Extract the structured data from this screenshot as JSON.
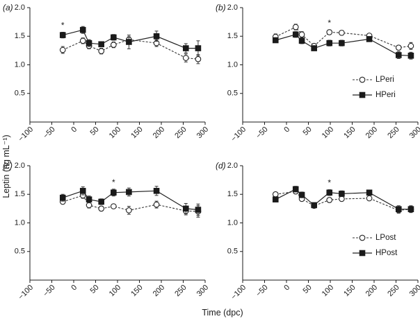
{
  "figure": {
    "ylabel": "Leptin (ng mL⁻¹)",
    "xlabel": "Time (dpc)"
  },
  "colors": {
    "ink": "#1a1a1a",
    "background": "#ffffff"
  },
  "chart_data": [
    {
      "type": "line",
      "panel": "(a)",
      "xlim": [
        -100,
        300
      ],
      "ylim": [
        0,
        2.0
      ],
      "xticks": [
        "−100",
        "−50",
        "0",
        "50",
        "100",
        "150",
        "200",
        "250",
        "300"
      ],
      "yticks": [
        "0.5",
        "1.0",
        "1.5",
        "2.0"
      ],
      "xtick_values": [
        -100,
        -50,
        0,
        50,
        100,
        150,
        200,
        250,
        300
      ],
      "ytick_values": [
        0.5,
        1.0,
        1.5,
        2.0
      ],
      "series": [
        {
          "name": "LPeri",
          "marker": "open-circle",
          "line": "dashed",
          "x": [
            -25,
            21,
            35,
            63,
            91,
            126,
            189,
            256,
            284
          ],
          "y": [
            1.26,
            1.42,
            1.33,
            1.24,
            1.35,
            1.44,
            1.38,
            1.12,
            1.1
          ],
          "err": [
            0.06,
            0.05,
            0.05,
            0.05,
            0.05,
            0.05,
            0.06,
            0.07,
            0.08
          ]
        },
        {
          "name": "HPeri",
          "marker": "filled-square",
          "line": "solid",
          "x": [
            -25,
            21,
            35,
            63,
            91,
            126,
            189,
            256,
            284
          ],
          "y": [
            1.52,
            1.61,
            1.38,
            1.36,
            1.48,
            1.4,
            1.5,
            1.29,
            1.29
          ],
          "err": [
            0.05,
            0.06,
            0.06,
            0.04,
            0.05,
            0.12,
            0.09,
            0.08,
            0.13
          ]
        }
      ],
      "significance": [
        {
          "x": -25,
          "label": "*"
        }
      ]
    },
    {
      "type": "line",
      "panel": "(b)",
      "xlim": [
        -100,
        300
      ],
      "ylim": [
        0,
        2.0
      ],
      "xticks": [
        "−100",
        "−50",
        "0",
        "50",
        "100",
        "150",
        "200",
        "250",
        "300"
      ],
      "yticks": [
        "0.5",
        "1.0",
        "1.5",
        "2.0"
      ],
      "xtick_values": [
        -100,
        -50,
        0,
        50,
        100,
        150,
        200,
        250,
        300
      ],
      "ytick_values": [
        0.5,
        1.0,
        1.5,
        2.0
      ],
      "series": [
        {
          "name": "LPeri",
          "marker": "open-circle",
          "line": "dashed",
          "x": [
            -25,
            21,
            35,
            63,
            98,
            126,
            189,
            256,
            284
          ],
          "y": [
            1.49,
            1.66,
            1.53,
            1.33,
            1.57,
            1.56,
            1.51,
            1.3,
            1.33
          ],
          "err": [
            0.05,
            0.05,
            0.05,
            0.04,
            0.04,
            0.04,
            0.03,
            0.04,
            0.06
          ]
        },
        {
          "name": "HPeri",
          "marker": "filled-square",
          "line": "solid",
          "x": [
            -25,
            21,
            35,
            63,
            98,
            126,
            189,
            256,
            284
          ],
          "y": [
            1.43,
            1.53,
            1.42,
            1.29,
            1.38,
            1.38,
            1.45,
            1.17,
            1.16
          ],
          "err": [
            0.04,
            0.05,
            0.05,
            0.04,
            0.05,
            0.05,
            0.04,
            0.06,
            0.06
          ]
        }
      ],
      "significance": [
        {
          "x": 98,
          "label": "*"
        }
      ],
      "legend": {
        "position": "right",
        "entries": [
          "LPeri",
          "HPeri"
        ]
      }
    },
    {
      "type": "line",
      "panel": "(c)",
      "xlim": [
        -100,
        300
      ],
      "ylim": [
        0,
        2.0
      ],
      "xticks": [
        "−100",
        "−50",
        "0",
        "50",
        "100",
        "150",
        "200",
        "250",
        "300"
      ],
      "yticks": [
        "0.5",
        "1.0",
        "1.5",
        "2.0"
      ],
      "xtick_values": [
        -100,
        -50,
        0,
        50,
        100,
        150,
        200,
        250,
        300
      ],
      "ytick_values": [
        0.5,
        1.0,
        1.5,
        2.0
      ],
      "series": [
        {
          "name": "LPost",
          "marker": "open-circle",
          "line": "dashed",
          "x": [
            -25,
            21,
            35,
            63,
            91,
            126,
            189,
            256,
            284
          ],
          "y": [
            1.37,
            1.48,
            1.31,
            1.25,
            1.29,
            1.22,
            1.32,
            1.21,
            1.2
          ],
          "err": [
            0.04,
            0.05,
            0.05,
            0.04,
            0.03,
            0.07,
            0.06,
            0.07,
            0.1
          ]
        },
        {
          "name": "HPost",
          "marker": "filled-square",
          "line": "solid",
          "x": [
            -25,
            21,
            35,
            63,
            91,
            126,
            189,
            256,
            284
          ],
          "y": [
            1.44,
            1.56,
            1.41,
            1.37,
            1.53,
            1.54,
            1.56,
            1.25,
            1.23
          ],
          "err": [
            0.06,
            0.07,
            0.06,
            0.05,
            0.06,
            0.07,
            0.08,
            0.09,
            0.1
          ]
        }
      ],
      "significance": [
        {
          "x": 91,
          "label": "*"
        }
      ]
    },
    {
      "type": "line",
      "panel": "(d)",
      "xlim": [
        -100,
        300
      ],
      "ylim": [
        0,
        2.0
      ],
      "xticks": [
        "−100",
        "−50",
        "0",
        "50",
        "100",
        "150",
        "200",
        "250",
        "300"
      ],
      "yticks": [
        "0.5",
        "1.0",
        "1.5",
        "2.0"
      ],
      "xtick_values": [
        -100,
        -50,
        0,
        50,
        100,
        150,
        200,
        250,
        300
      ],
      "ytick_values": [
        0.5,
        1.0,
        1.5,
        2.0
      ],
      "series": [
        {
          "name": "LPost",
          "marker": "open-circle",
          "line": "dashed",
          "x": [
            -25,
            21,
            35,
            63,
            98,
            126,
            189,
            256,
            284
          ],
          "y": [
            1.5,
            1.55,
            1.42,
            1.3,
            1.4,
            1.42,
            1.43,
            1.22,
            1.24
          ],
          "err": [
            0.03,
            0.04,
            0.04,
            0.03,
            0.04,
            0.04,
            0.03,
            0.05,
            0.05
          ]
        },
        {
          "name": "HPost",
          "marker": "filled-square",
          "line": "solid",
          "x": [
            -25,
            21,
            35,
            63,
            98,
            126,
            189,
            256,
            284
          ],
          "y": [
            1.41,
            1.59,
            1.49,
            1.31,
            1.53,
            1.51,
            1.53,
            1.24,
            1.24
          ],
          "err": [
            0.04,
            0.05,
            0.05,
            0.04,
            0.05,
            0.05,
            0.04,
            0.06,
            0.06
          ]
        }
      ],
      "significance": [
        {
          "x": 98,
          "label": "*"
        }
      ],
      "legend": {
        "position": "right",
        "entries": [
          "LPost",
          "HPost"
        ]
      }
    }
  ]
}
